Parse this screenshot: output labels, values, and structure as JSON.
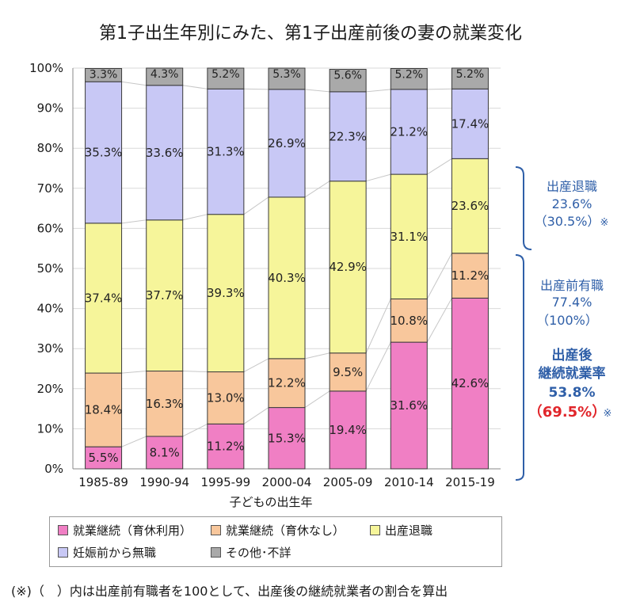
{
  "chart_data": {
    "type": "bar",
    "stacked": true,
    "title": "第1子出生年別にみた、第1子出産前後の妻の就業変化",
    "xlabel": "子どもの出生年",
    "ylabel": "",
    "ylim": [
      0,
      100
    ],
    "y_ticks": [
      "0%",
      "10%",
      "20%",
      "30%",
      "40%",
      "50%",
      "60%",
      "70%",
      "80%",
      "90%",
      "100%"
    ],
    "categories": [
      "1985-89",
      "1990-94",
      "1995-99",
      "2000-04",
      "2005-09",
      "2010-14",
      "2015-19"
    ],
    "series": [
      {
        "name": "就業継続（育休利用）",
        "color": "#f07fc4",
        "values": [
          5.5,
          8.1,
          11.2,
          15.3,
          19.4,
          31.6,
          42.6
        ],
        "labels": [
          "5.5%",
          "8.1%",
          "11.2%",
          "15.3%",
          "19.4%",
          "31.6%",
          "42.6%"
        ]
      },
      {
        "name": "就業継続（育休なし）",
        "color": "#f8c79c",
        "values": [
          18.4,
          16.3,
          13.0,
          12.2,
          9.5,
          10.8,
          11.2
        ],
        "labels": [
          "18.4%",
          "16.3%",
          "13.0%",
          "12.2%",
          "9.5%",
          "10.8%",
          "11.2%"
        ]
      },
      {
        "name": "出産退職",
        "color": "#f6f59a",
        "values": [
          37.4,
          37.7,
          39.3,
          40.3,
          42.9,
          31.1,
          23.6
        ],
        "labels": [
          "37.4%",
          "37.7%",
          "39.3%",
          "40.3%",
          "42.9%",
          "31.1%",
          "23.6%"
        ]
      },
      {
        "name": "妊娠前から無職",
        "color": "#c8c8f5",
        "values": [
          35.3,
          33.6,
          31.3,
          26.9,
          22.3,
          21.2,
          17.4
        ],
        "labels": [
          "35.3%",
          "33.6%",
          "31.3%",
          "26.9%",
          "22.3%",
          "21.2%",
          "17.4%"
        ]
      },
      {
        "name": "その他・不詳",
        "color": "#a9a9a9",
        "values": [
          3.3,
          4.3,
          5.2,
          5.3,
          5.6,
          5.2,
          5.2
        ],
        "labels": [
          "3.3%",
          "4.3%",
          "5.2%",
          "5.3%",
          "5.6%",
          "5.2%",
          "5.2%"
        ]
      }
    ],
    "grid": true,
    "legend_position": "bottom",
    "annotations": {
      "resign": {
        "title": "出産退職",
        "line1": "23.6%",
        "line2": "（30.5%）",
        "mark": "※"
      },
      "employed": {
        "title": "出産前有職",
        "line1": "77.4%",
        "line2": "（100%）"
      },
      "continue": {
        "title_a": "出産後",
        "title_b": "継続就業率",
        "line1": "53.8%",
        "line2": "（69.5%）",
        "mark": "※"
      }
    }
  },
  "legend": [
    {
      "label": "就業継続（育休利用）",
      "color": "#f07fc4"
    },
    {
      "label": "就業継続（育休なし）",
      "color": "#f8c79c"
    },
    {
      "label": "出産退職",
      "color": "#f6f59a"
    },
    {
      "label": "妊娠前から無職",
      "color": "#c8c8f5"
    },
    {
      "label": "その他･不詳",
      "color": "#a9a9a9"
    }
  ],
  "footnote": "(※)（　）内は出産前有職者を100として、出産後の継続就業者の割合を算出"
}
